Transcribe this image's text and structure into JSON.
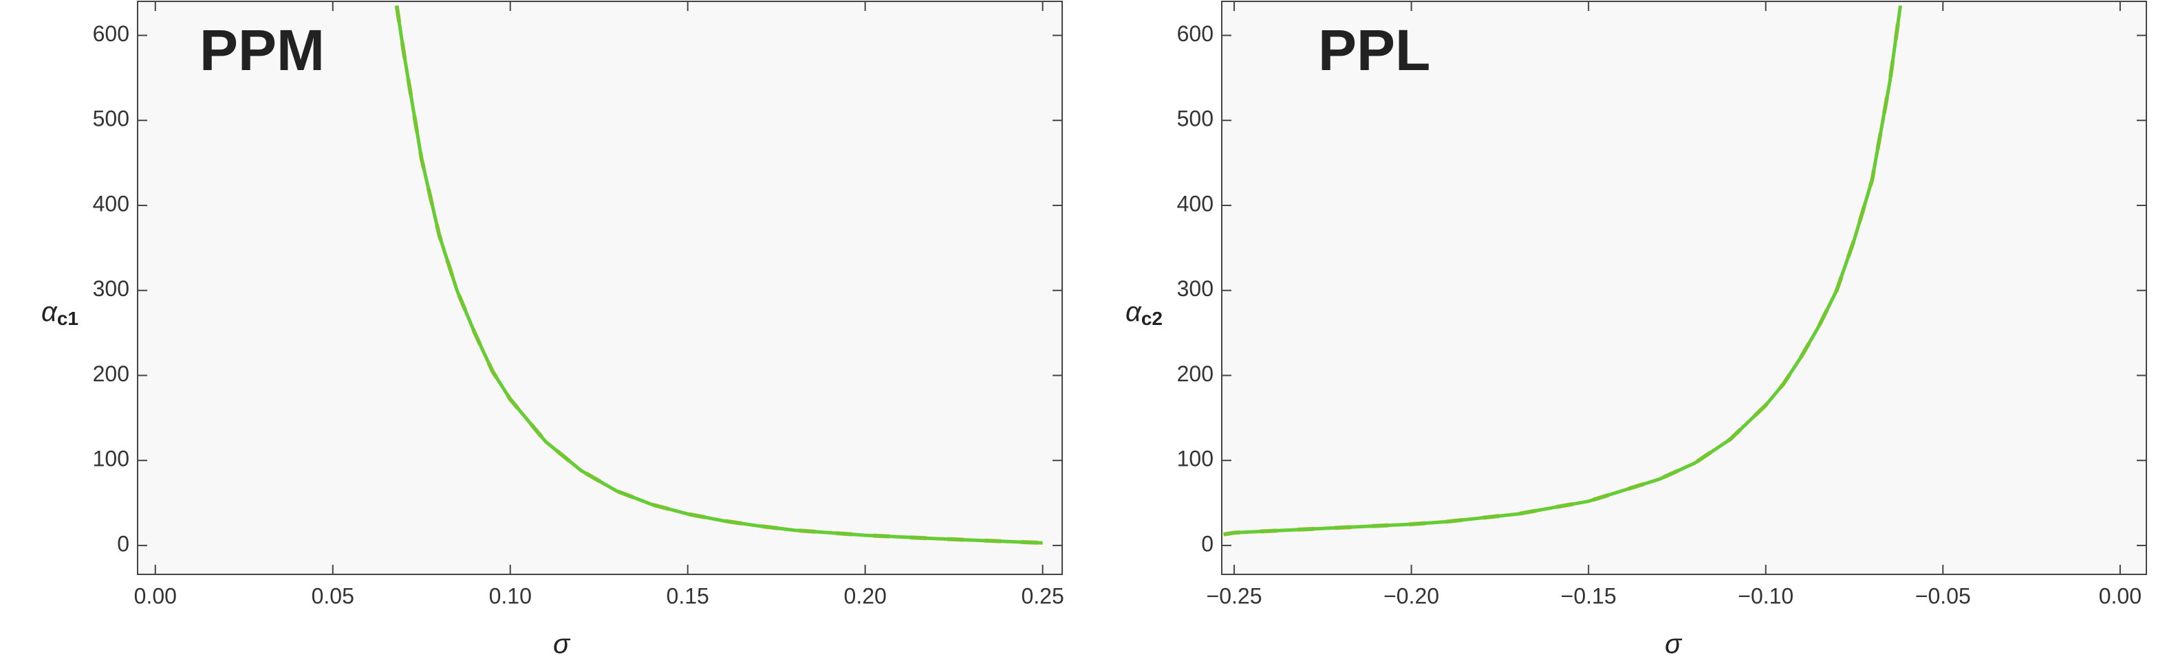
{
  "chart_data": [
    {
      "type": "line",
      "annotation": "PPM",
      "x_label": "σ",
      "y_label": "α",
      "y_label_sub": "c1",
      "x": [
        0.068,
        0.07,
        0.075,
        0.08,
        0.085,
        0.09,
        0.095,
        0.1,
        0.11,
        0.12,
        0.13,
        0.14,
        0.15,
        0.16,
        0.17,
        0.18,
        0.19,
        0.2,
        0.22,
        0.25
      ],
      "series": [
        {
          "color": "#e8a33d",
          "dashed": true,
          "values": [
            635,
            580,
            455,
            365,
            300,
            250,
            205,
            172,
            122,
            88,
            64,
            48,
            37,
            29,
            23,
            18,
            15,
            12,
            8,
            3
          ]
        },
        {
          "color": "#66cc33",
          "dashed": false,
          "values": [
            635,
            580,
            455,
            365,
            300,
            250,
            205,
            172,
            122,
            88,
            64,
            48,
            37,
            29,
            23,
            18,
            15,
            12,
            8,
            3
          ]
        }
      ],
      "xlim": [
        -0.005,
        0.2555
      ],
      "ylim": [
        -34,
        640
      ],
      "xticks": [
        {
          "value": 0,
          "label": "0.00"
        },
        {
          "value": 0.05,
          "label": "0.05"
        },
        {
          "value": 0.1,
          "label": "0.10"
        },
        {
          "value": 0.15,
          "label": "0.15"
        },
        {
          "value": 0.2,
          "label": "0.20"
        },
        {
          "value": 0.25,
          "label": "0.25"
        }
      ],
      "yticks": [
        0,
        100,
        200,
        300,
        400,
        500,
        600
      ]
    },
    {
      "type": "line",
      "annotation": "PPL",
      "x_label": "σ",
      "y_label": "α",
      "y_label_sub": "c2",
      "x": [
        -0.253,
        -0.25,
        -0.23,
        -0.21,
        -0.2,
        -0.19,
        -0.17,
        -0.15,
        -0.13,
        -0.12,
        -0.11,
        -0.1,
        -0.095,
        -0.09,
        -0.085,
        -0.08,
        -0.075,
        -0.07,
        -0.065,
        -0.062
      ],
      "series": [
        {
          "color": "#e8a33d",
          "dashed": true,
          "values": [
            13,
            15,
            19,
            23,
            25,
            28,
            37,
            52,
            78,
            97,
            125,
            165,
            190,
            222,
            258,
            300,
            360,
            430,
            545,
            635
          ]
        },
        {
          "color": "#66cc33",
          "dashed": false,
          "values": [
            13,
            15,
            19,
            23,
            25,
            28,
            37,
            52,
            78,
            97,
            125,
            165,
            190,
            222,
            258,
            300,
            360,
            430,
            545,
            635
          ]
        }
      ],
      "xlim": [
        -0.2535,
        0.0074
      ],
      "ylim": [
        -34,
        640
      ],
      "xticks": [
        {
          "value": -0.25,
          "label": "−0.25"
        },
        {
          "value": -0.2,
          "label": "−0.20"
        },
        {
          "value": -0.15,
          "label": "−0.15"
        },
        {
          "value": -0.1,
          "label": "−0.10"
        },
        {
          "value": -0.05,
          "label": "−0.05"
        },
        {
          "value": 0,
          "label": "0.00"
        }
      ],
      "yticks": [
        0,
        100,
        200,
        300,
        400,
        500,
        600
      ]
    }
  ]
}
